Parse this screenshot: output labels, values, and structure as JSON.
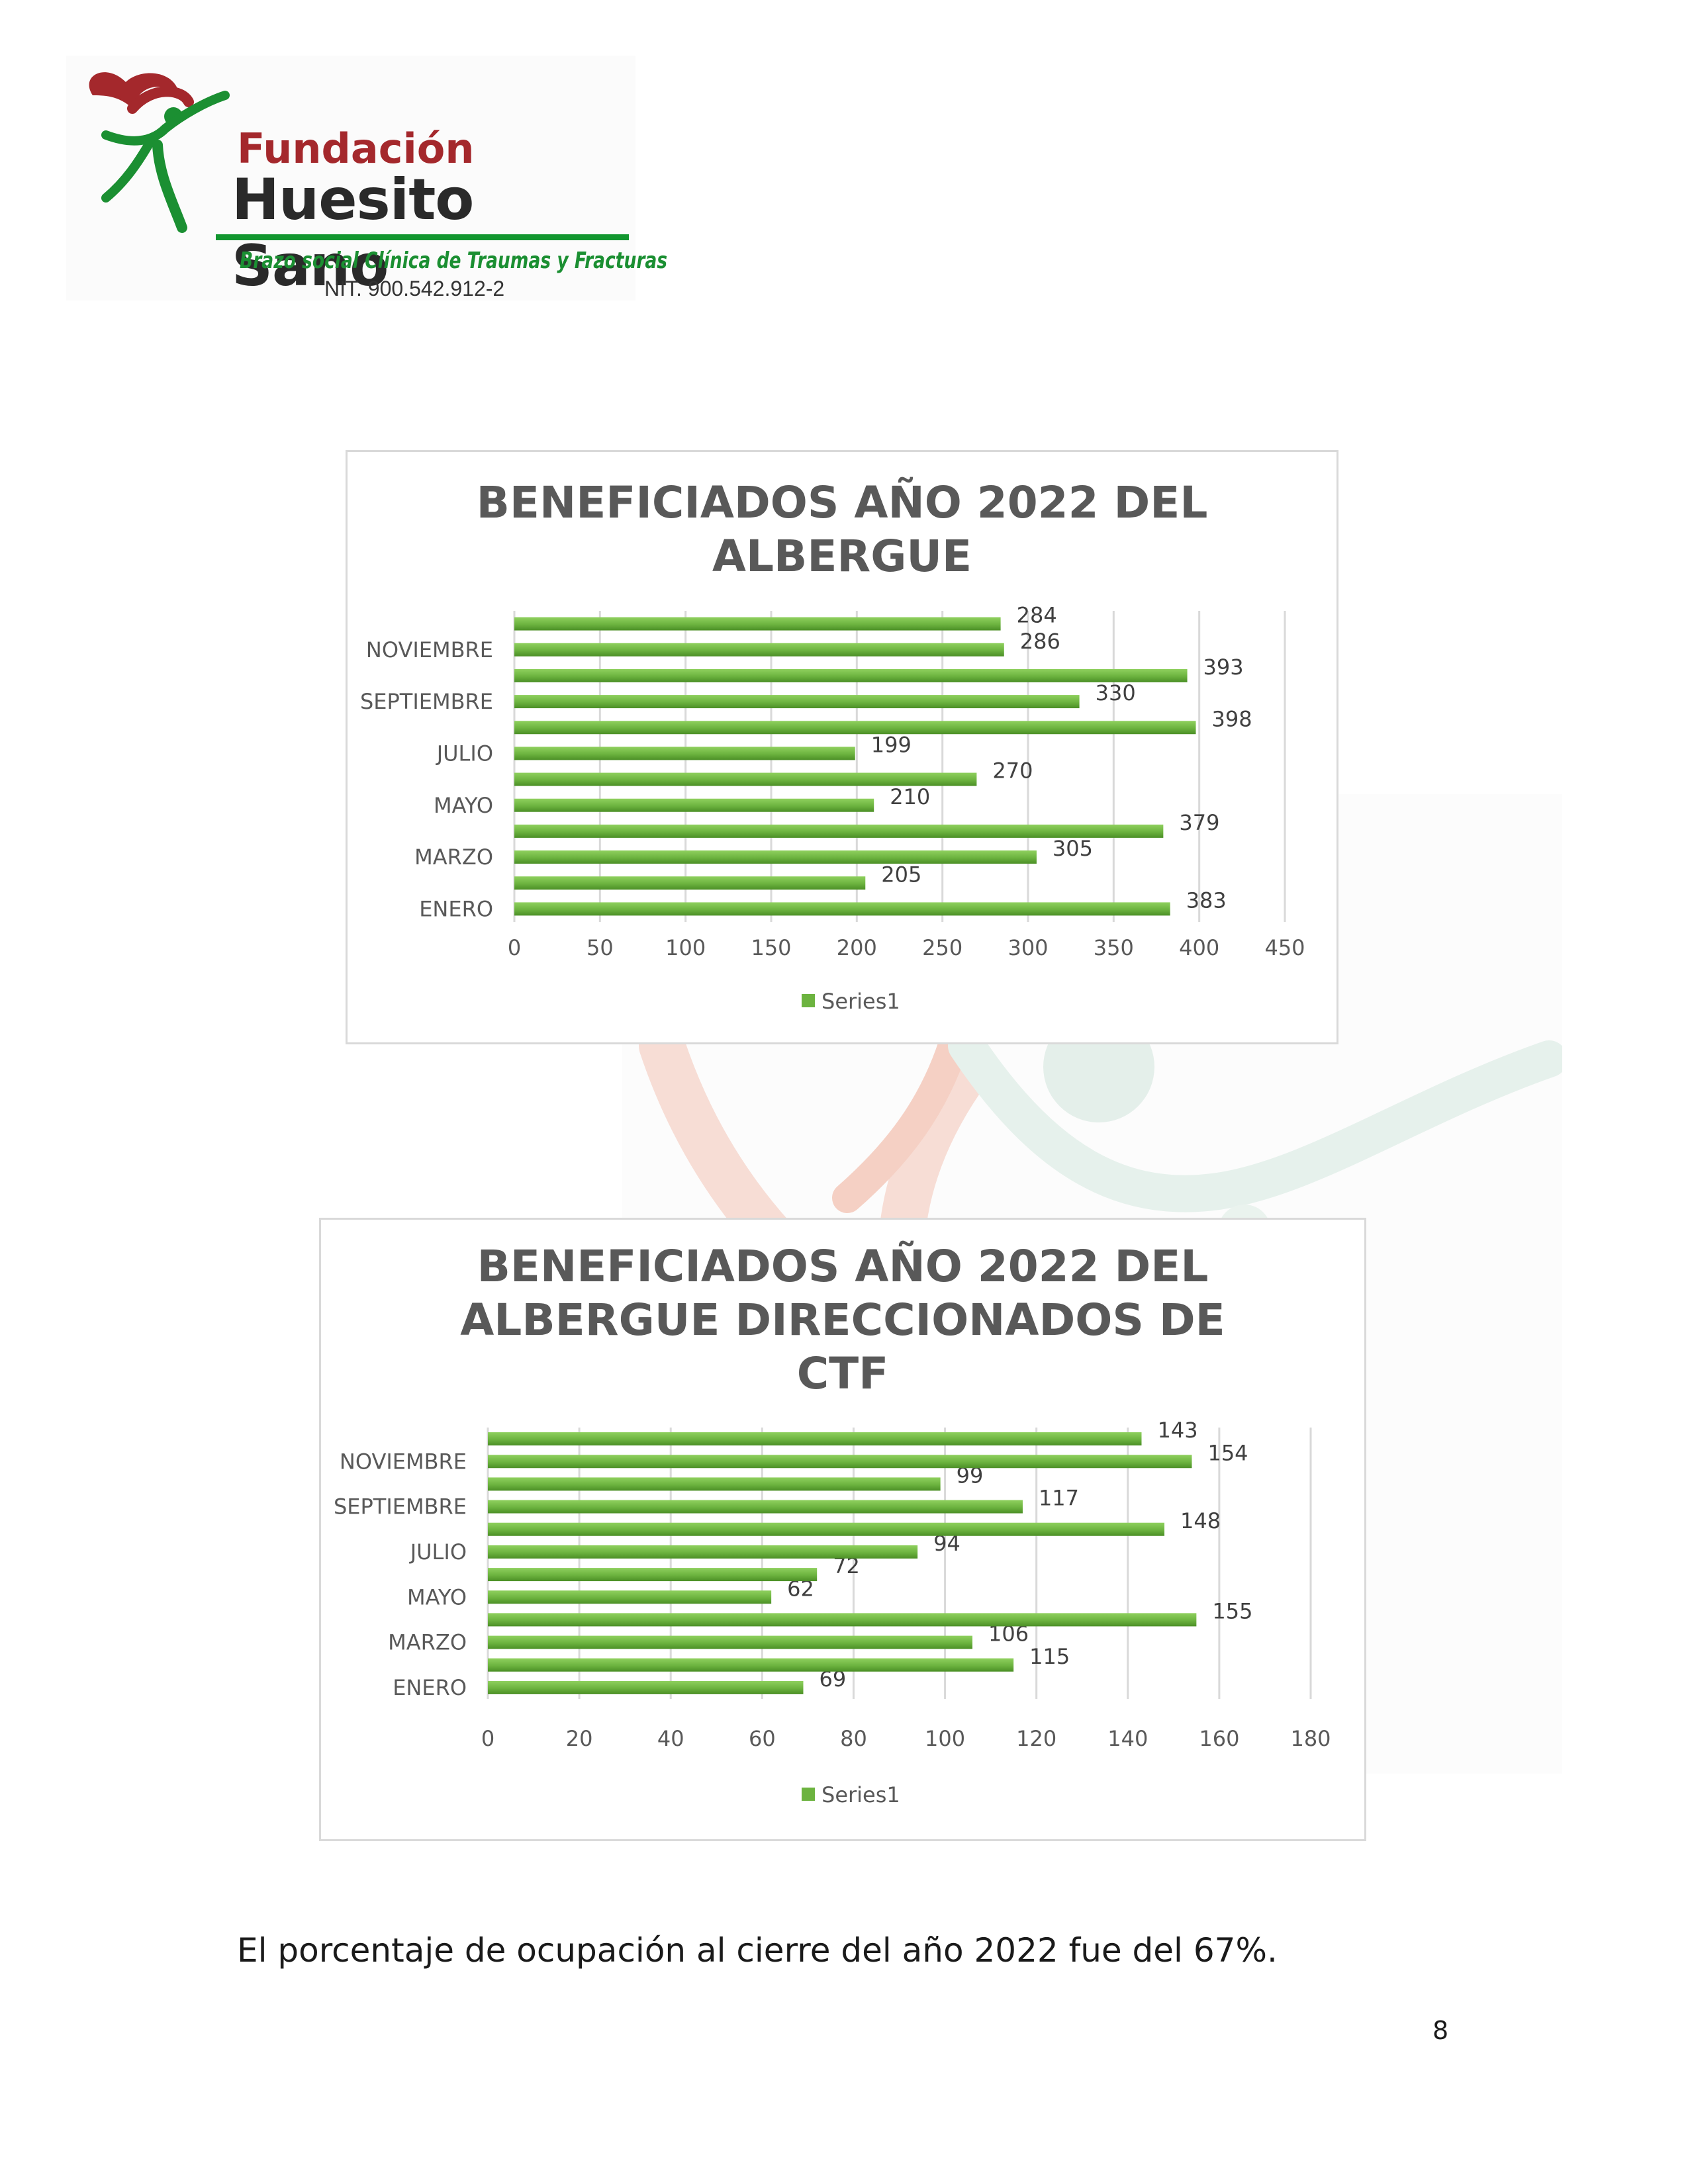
{
  "logo": {
    "name_line1": "Fundación",
    "name_line2": "Huesito Sano",
    "tagline": "Brazo social Clínica de Traumas y Fracturas",
    "nit": "NIT. 900.542.912-2",
    "colors": {
      "red": "#a4282c",
      "green": "#12962f"
    }
  },
  "chart_data": [
    {
      "type": "bar",
      "orientation": "horizontal",
      "title": "BENEFICIADOS AÑO 2022 DEL ALBERGUE",
      "title_lines": [
        "BENEFICIADOS AÑO 2022 DEL",
        "ALBERGUE"
      ],
      "categories": [
        "ENERO",
        "",
        "MARZO",
        "",
        "MAYO",
        "",
        "JULIO",
        "",
        "SEPTIEMBRE",
        "",
        "NOVIEMBRE",
        ""
      ],
      "series": [
        {
          "name": "Series1",
          "values": [
            383,
            205,
            305,
            379,
            210,
            270,
            199,
            398,
            330,
            393,
            286,
            284
          ]
        }
      ],
      "xlim": [
        0,
        450
      ],
      "xticks": [
        0,
        50,
        100,
        150,
        200,
        250,
        300,
        350,
        400,
        450
      ],
      "legend": "bottom",
      "grid": true,
      "bar_color": "#6cb33f"
    },
    {
      "type": "bar",
      "orientation": "horizontal",
      "title": "BENEFICIADOS AÑO 2022 DEL ALBERGUE DIRECCIONADOS DE CTF",
      "title_lines": [
        "BENEFICIADOS AÑO 2022 DEL",
        "ALBERGUE DIRECCIONADOS DE",
        "CTF"
      ],
      "categories": [
        "ENERO",
        "",
        "MARZO",
        "",
        "MAYO",
        "",
        "JULIO",
        "",
        "SEPTIEMBRE",
        "",
        "NOVIEMBRE",
        ""
      ],
      "series": [
        {
          "name": "Series1",
          "values": [
            69,
            115,
            106,
            155,
            62,
            72,
            94,
            148,
            117,
            99,
            154,
            143
          ]
        }
      ],
      "xlim": [
        0,
        180
      ],
      "xticks": [
        0,
        20,
        40,
        60,
        80,
        100,
        120,
        140,
        160,
        180
      ],
      "legend": "bottom",
      "grid": true,
      "bar_color": "#6cb33f"
    }
  ],
  "caption": "El porcentaje de ocupación al cierre del año 2022 fue del 67%.",
  "page_number": "8"
}
